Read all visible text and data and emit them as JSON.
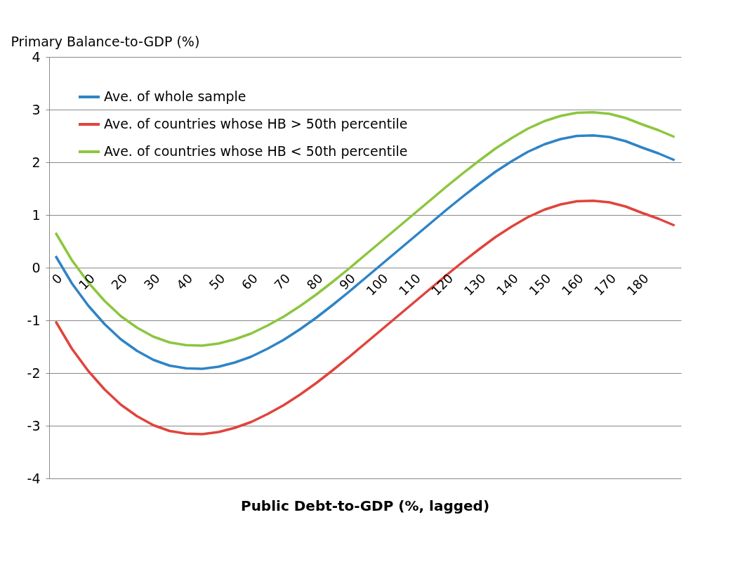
{
  "chart_data": {
    "type": "line",
    "xlabel": "Public Debt-to-GDP (%, lagged)",
    "ylabel": "Primary Balance-to-GDP (%)",
    "x": [
      0,
      5,
      10,
      15,
      20,
      25,
      30,
      35,
      40,
      45,
      50,
      55,
      60,
      65,
      70,
      75,
      80,
      85,
      90,
      95,
      100,
      105,
      110,
      115,
      120,
      125,
      130,
      135,
      140,
      145,
      150,
      155,
      160,
      165,
      170,
      175,
      180,
      185,
      190
    ],
    "xlim": [
      -2,
      192
    ],
    "xticks": [
      0,
      10,
      20,
      30,
      40,
      50,
      60,
      70,
      80,
      90,
      100,
      110,
      120,
      130,
      140,
      150,
      160,
      170,
      180
    ],
    "ylim": [
      -4,
      4
    ],
    "yticks": [
      -4,
      -3,
      -2,
      -1,
      0,
      1,
      2,
      3,
      4
    ],
    "grid": "y",
    "legend": "top left",
    "marker": "none",
    "line_style": "solid",
    "series": [
      {
        "name": "Ave. of whole sample",
        "color": "#2e84c6",
        "values": [
          0.22,
          -0.3,
          -0.72,
          -1.07,
          -1.36,
          -1.58,
          -1.75,
          -1.86,
          -1.91,
          -1.92,
          -1.88,
          -1.8,
          -1.69,
          -1.54,
          -1.37,
          -1.17,
          -0.95,
          -0.71,
          -0.46,
          -0.2,
          0.06,
          0.32,
          0.58,
          0.84,
          1.1,
          1.35,
          1.59,
          1.82,
          2.02,
          2.2,
          2.34,
          2.44,
          2.5,
          2.51,
          2.48,
          2.4,
          2.28,
          2.17,
          2.04
        ]
      },
      {
        "name": "Ave. of countries whose HB > 50th percentile",
        "color": "#e0443c",
        "values": [
          -1.02,
          -1.54,
          -1.96,
          -2.31,
          -2.6,
          -2.82,
          -2.99,
          -3.1,
          -3.15,
          -3.16,
          -3.12,
          -3.04,
          -2.93,
          -2.78,
          -2.61,
          -2.41,
          -2.19,
          -1.95,
          -1.7,
          -1.44,
          -1.18,
          -0.92,
          -0.66,
          -0.4,
          -0.14,
          0.11,
          0.35,
          0.58,
          0.78,
          0.96,
          1.1,
          1.2,
          1.26,
          1.27,
          1.24,
          1.16,
          1.04,
          0.93,
          0.8
        ]
      },
      {
        "name": "Ave. of countries whose HB < 50th percentile",
        "color": "#8cc63e",
        "values": [
          0.66,
          0.14,
          -0.28,
          -0.63,
          -0.92,
          -1.14,
          -1.31,
          -1.42,
          -1.47,
          -1.48,
          -1.44,
          -1.36,
          -1.25,
          -1.1,
          -0.93,
          -0.73,
          -0.51,
          -0.27,
          -0.02,
          0.24,
          0.5,
          0.76,
          1.02,
          1.28,
          1.54,
          1.79,
          2.03,
          2.26,
          2.46,
          2.64,
          2.78,
          2.88,
          2.94,
          2.95,
          2.92,
          2.84,
          2.72,
          2.61,
          2.48
        ]
      }
    ]
  }
}
